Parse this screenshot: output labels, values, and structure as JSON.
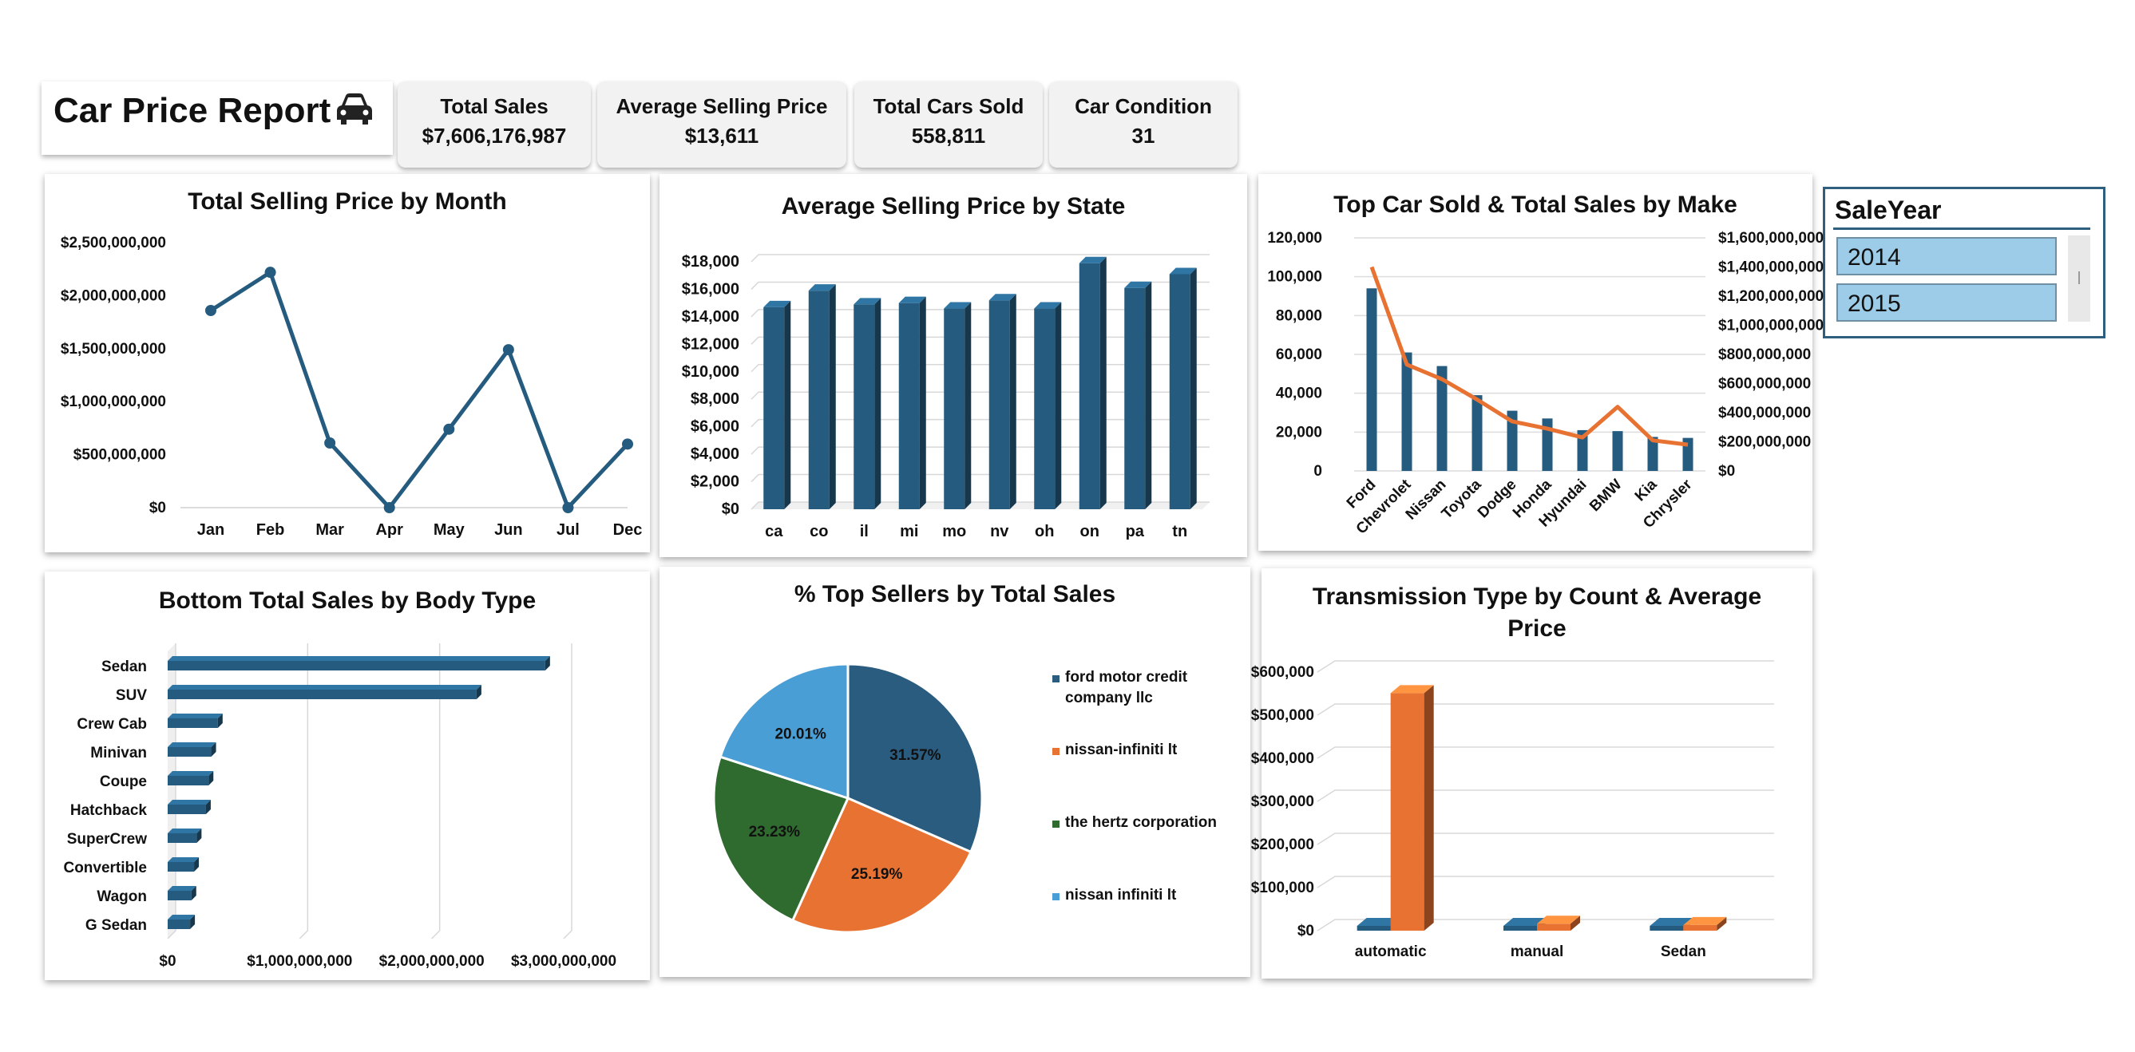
{
  "report": {
    "title": "Car Price Report",
    "icon": "car-icon"
  },
  "kpis": [
    {
      "label": "Total Sales",
      "value": "$7,606,176,987"
    },
    {
      "label": "Average Selling Price",
      "value": "$13,611"
    },
    {
      "label": "Total Cars Sold",
      "value": "558,811"
    },
    {
      "label": "Car Condition",
      "value": "31"
    }
  ],
  "slicer": {
    "title": "SaleYear",
    "items": [
      "2014",
      "2015"
    ]
  },
  "colors": {
    "navy": "#245b7e",
    "orange": "#e87232",
    "green": "#2f6a2f",
    "lightblue": "#4a9ed6",
    "piedark": "#2a5c80"
  },
  "chart_data": [
    {
      "type": "line",
      "title": "Total Selling Price by Month",
      "categories": [
        "Jan",
        "Feb",
        "Mar",
        "Apr",
        "May",
        "Jun",
        "Jul",
        "Dec"
      ],
      "values": [
        1860000000,
        2220000000,
        610000000,
        0,
        740000000,
        1490000000,
        0,
        600000000
      ],
      "yticks": [
        "$0",
        "$500,000,000",
        "$1,000,000,000",
        "$1,500,000,000",
        "$2,000,000,000",
        "$2,500,000,000"
      ],
      "ylim": [
        0,
        2500000000
      ],
      "grid": false
    },
    {
      "type": "bar",
      "title": "Average Selling Price by State",
      "categories": [
        "ca",
        "co",
        "il",
        "mi",
        "mo",
        "nv",
        "oh",
        "on",
        "pa",
        "tn"
      ],
      "values": [
        14700,
        15900,
        14900,
        15000,
        14600,
        15200,
        14600,
        17900,
        16100,
        17100
      ],
      "yticks": [
        "$0",
        "$2,000",
        "$4,000",
        "$6,000",
        "$8,000",
        "$10,000",
        "$12,000",
        "$14,000",
        "$16,000",
        "$18,000"
      ],
      "ylim": [
        0,
        18000
      ],
      "grid": true
    },
    {
      "type": "bar",
      "title": "Top Car Sold & Total Sales by Make",
      "categories": [
        "Ford",
        "Chevrolet",
        "Nissan",
        "Toyota",
        "Dodge",
        "Honda",
        "Hyundai",
        "BMW",
        "Kia",
        "Chrysler"
      ],
      "series": [
        {
          "values": [
            94000,
            61000,
            54000,
            39000,
            31000,
            27000,
            21000,
            20500,
            17500,
            17000
          ]
        },
        {
          "values": [
            1400000000,
            730000000,
            630000000,
            490000000,
            340000000,
            290000000,
            230000000,
            440000000,
            210000000,
            180000000
          ]
        }
      ],
      "yticks": [
        "0",
        "20,000",
        "40,000",
        "60,000",
        "80,000",
        "100,000",
        "120,000"
      ],
      "y2ticks": [
        "$0",
        "$200,000,000",
        "$400,000,000",
        "$600,000,000",
        "$800,000,000",
        "$1,000,000,000",
        "$1,200,000,000",
        "$1,400,000,000",
        "$1,600,000,000"
      ],
      "ylim": [
        0,
        120000
      ],
      "y2lim": [
        0,
        1600000000
      ],
      "grid": true
    },
    {
      "type": "bar",
      "title": "Bottom Total Sales by Body Type",
      "categories": [
        "Sedan",
        "SUV",
        "Crew Cab",
        "Minivan",
        "Coupe",
        "Hatchback",
        "SuperCrew",
        "Convertible",
        "Wagon",
        "G Sedan"
      ],
      "values": [
        2860000000,
        2340000000,
        380000000,
        330000000,
        310000000,
        290000000,
        220000000,
        200000000,
        180000000,
        170000000
      ],
      "xticks": [
        "$0",
        "$1,000,000,000",
        "$2,000,000,000",
        "$3,000,000,000"
      ],
      "xlim": [
        0,
        3000000000
      ],
      "grid": true
    },
    {
      "type": "pie",
      "title": "% Top Sellers by Total Sales",
      "labels": [
        "ford motor credit company llc",
        "nissan-infiniti lt",
        "the hertz corporation",
        "nissan infiniti lt"
      ],
      "values": [
        31.57,
        25.19,
        23.23,
        20.01
      ],
      "value_labels": [
        "31.57%",
        "25.19%",
        "23.23%",
        "20.01%"
      ],
      "legend": "right"
    },
    {
      "type": "bar",
      "title": "Transmission Type by Count & Average Price",
      "categories": [
        "automatic",
        "manual",
        "Sedan"
      ],
      "series": [
        {
          "values": [
            0,
            0,
            0
          ]
        },
        {
          "values": [
            540000,
            5000,
            2000
          ]
        }
      ],
      "yticks": [
        "$0",
        "$100,000",
        "$200,000",
        "$300,000",
        "$400,000",
        "$500,000",
        "$600,000"
      ],
      "ylim": [
        0,
        600000
      ],
      "grid": true
    }
  ]
}
